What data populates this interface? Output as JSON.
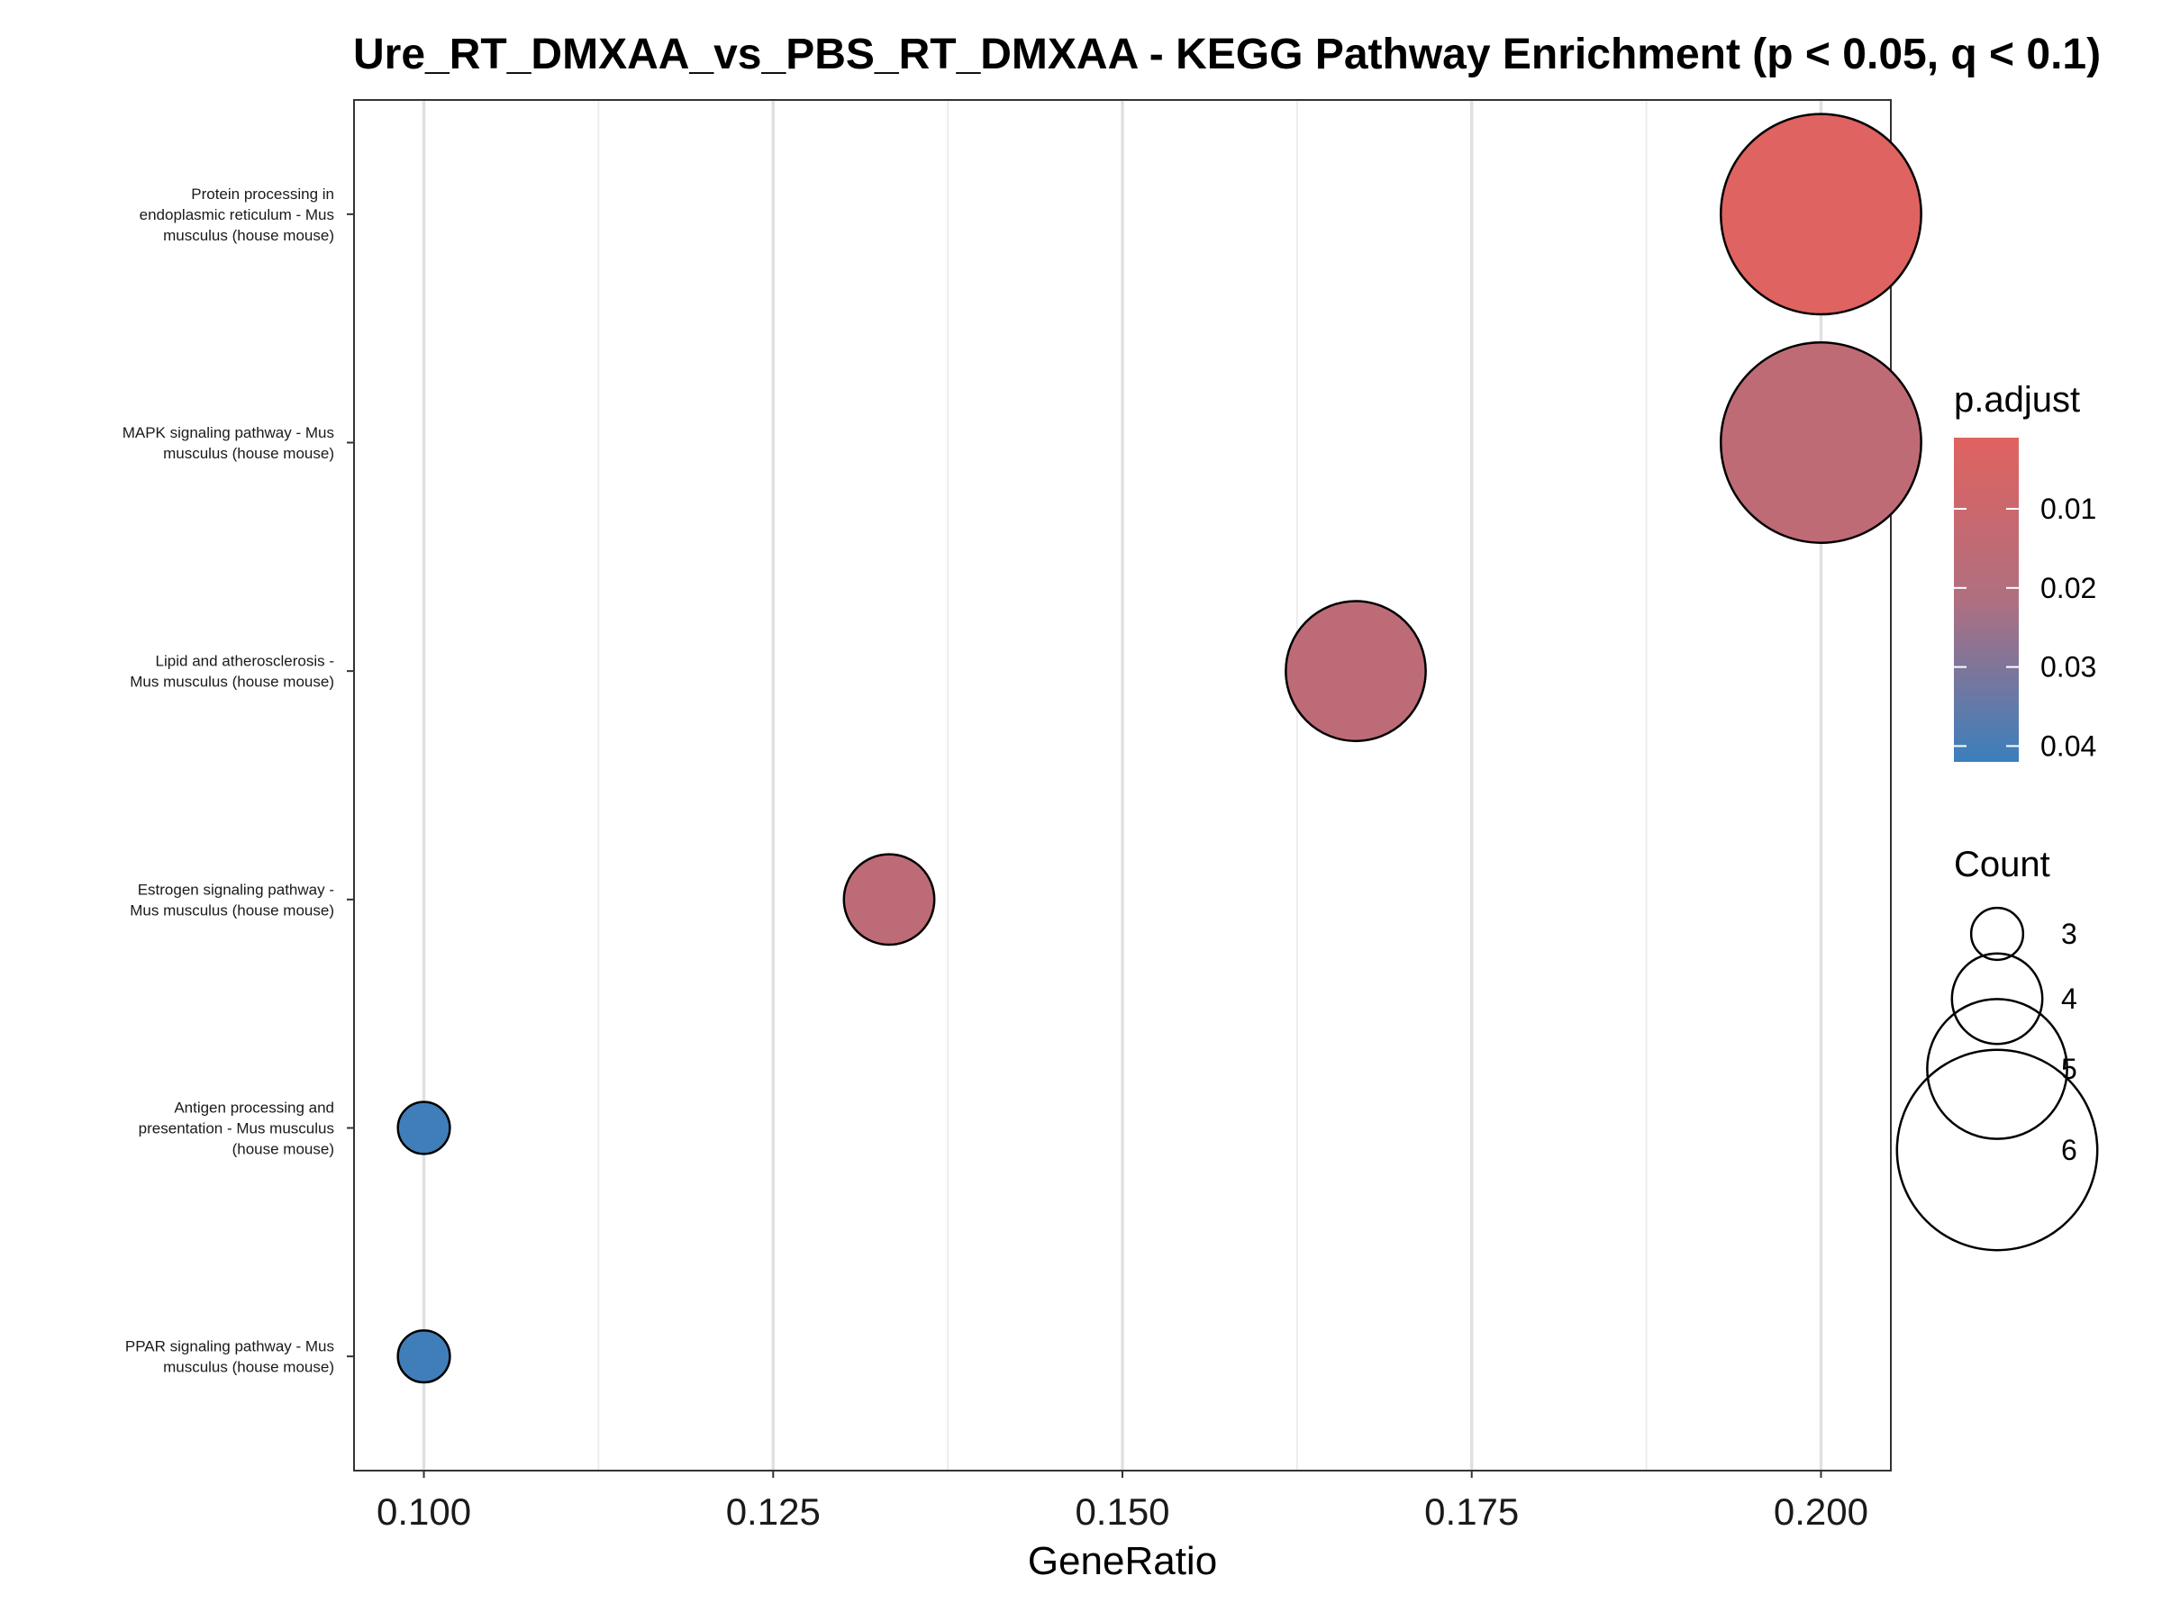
{
  "chart_data": {
    "type": "scatter",
    "title": "Ure_RT_DMXAA_vs_PBS_RT_DMXAA - KEGG Pathway Enrichment (p < 0.05, q < 0.1)",
    "xlabel": "GeneRatio",
    "ylabel": "",
    "xlim": [
      0.095,
      0.205
    ],
    "xticks": [
      "0.100",
      "0.125",
      "0.150",
      "0.175",
      "0.200"
    ],
    "xtick_values": [
      0.1,
      0.125,
      0.15,
      0.175,
      0.2
    ],
    "grid": true,
    "legend_position": "right",
    "categories": [
      "Protein processing in endoplasmic reticulum - Mus musculus (house mouse)",
      "MAPK signaling pathway - Mus musculus (house mouse)",
      "Lipid and atherosclerosis - Mus musculus (house mouse)",
      "Estrogen signaling pathway - Mus musculus (house mouse)",
      "Antigen processing and presentation - Mus musculus (house mouse)",
      "PPAR signaling pathway - Mus musculus (house mouse)"
    ],
    "category_label_lines": [
      [
        "Protein processing in",
        "endoplasmic reticulum - Mus",
        "musculus (house mouse)"
      ],
      [
        "MAPK signaling pathway - Mus",
        "musculus (house mouse)"
      ],
      [
        "Lipid and atherosclerosis -",
        "Mus musculus (house mouse)"
      ],
      [
        "Estrogen signaling pathway -",
        "Mus musculus (house mouse)"
      ],
      [
        "Antigen processing and",
        "presentation - Mus musculus",
        "(house mouse)"
      ],
      [
        "PPAR signaling pathway - Mus",
        "musculus (house mouse)"
      ]
    ],
    "points": [
      {
        "pathway": "Protein processing in endoplasmic reticulum - Mus musculus (house mouse)",
        "gene_ratio": 0.2,
        "count": 6,
        "p_adjust": 0.002
      },
      {
        "pathway": "MAPK signaling pathway - Mus musculus (house mouse)",
        "gene_ratio": 0.2,
        "count": 6,
        "p_adjust": 0.015
      },
      {
        "pathway": "Lipid and atherosclerosis - Mus musculus (house mouse)",
        "gene_ratio": 0.1667,
        "count": 5,
        "p_adjust": 0.016
      },
      {
        "pathway": "Estrogen signaling pathway - Mus musculus (house mouse)",
        "gene_ratio": 0.1333,
        "count": 4,
        "p_adjust": 0.016
      },
      {
        "pathway": "Antigen processing and presentation - Mus musculus (house mouse)",
        "gene_ratio": 0.1,
        "count": 3,
        "p_adjust": 0.041
      },
      {
        "pathway": "PPAR signaling pathway - Mus musculus (house mouse)",
        "gene_ratio": 0.1,
        "count": 3,
        "p_adjust": 0.041
      }
    ],
    "color_legend": {
      "title": "p.adjust",
      "ticks": [
        "0.01",
        "0.02",
        "0.03",
        "0.04"
      ],
      "tick_values": [
        0.01,
        0.02,
        0.03,
        0.04
      ],
      "range": [
        0.001,
        0.042
      ],
      "low_color": "#E0625F",
      "high_color": "#3A7FBD"
    },
    "size_legend": {
      "title": "Count",
      "labels": [
        "3",
        "4",
        "5",
        "6"
      ],
      "values": [
        3,
        4,
        5,
        6
      ]
    }
  }
}
